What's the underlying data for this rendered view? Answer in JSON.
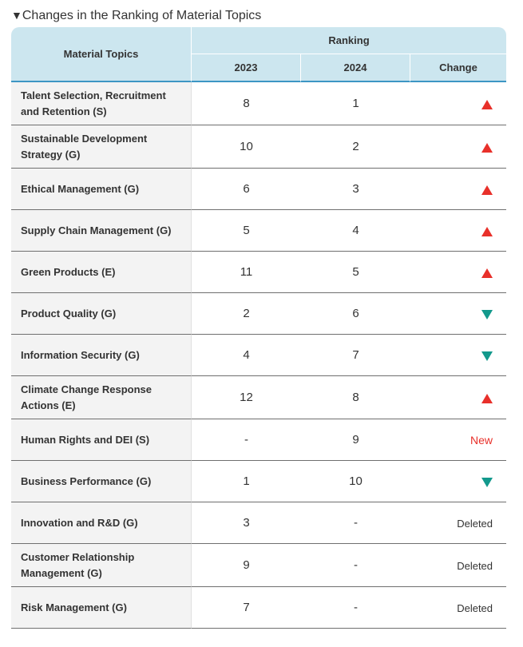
{
  "title": "Changes in the Ranking of Material Topics",
  "header": {
    "topics_label": "Material Topics",
    "ranking_label": "Ranking",
    "year1": "2023",
    "year2": "2024",
    "change_label": "Change"
  },
  "colors": {
    "header_bg": "#cce6ef",
    "header_rule": "#3d96c4",
    "up": "#e8302a",
    "down": "#13998c",
    "new": "#e8302a"
  },
  "rows": [
    {
      "topic": "Talent Selection, Recruitment and Retention (S)",
      "r2023": "8",
      "r2024": "1",
      "change": "up"
    },
    {
      "topic": "Sustainable Development Strategy (G)",
      "r2023": "10",
      "r2024": "2",
      "change": "up"
    },
    {
      "topic": "Ethical Management (G)",
      "r2023": "6",
      "r2024": "3",
      "change": "up"
    },
    {
      "topic": "Supply Chain Management (G)",
      "r2023": "5",
      "r2024": "4",
      "change": "up"
    },
    {
      "topic": "Green Products (E)",
      "r2023": "11",
      "r2024": "5",
      "change": "up"
    },
    {
      "topic": "Product Quality (G)",
      "r2023": "2",
      "r2024": "6",
      "change": "down"
    },
    {
      "topic": "Information Security (G)",
      "r2023": "4",
      "r2024": "7",
      "change": "down"
    },
    {
      "topic": "Climate Change Response Actions (E)",
      "r2023": "12",
      "r2024": "8",
      "change": "up"
    },
    {
      "topic": "Human Rights and DEI (S)",
      "r2023": "-",
      "r2024": "9",
      "change": "New"
    },
    {
      "topic": "Business Performance (G)",
      "r2023": "1",
      "r2024": "10",
      "change": "down"
    },
    {
      "topic": "Innovation and R&D (G)",
      "r2023": "3",
      "r2024": "-",
      "change": "Deleted"
    },
    {
      "topic": "Customer Relationship Management (G)",
      "r2023": "9",
      "r2024": "-",
      "change": "Deleted"
    },
    {
      "topic": "Risk Management (G)",
      "r2023": "7",
      "r2024": "-",
      "change": "Deleted"
    }
  ]
}
